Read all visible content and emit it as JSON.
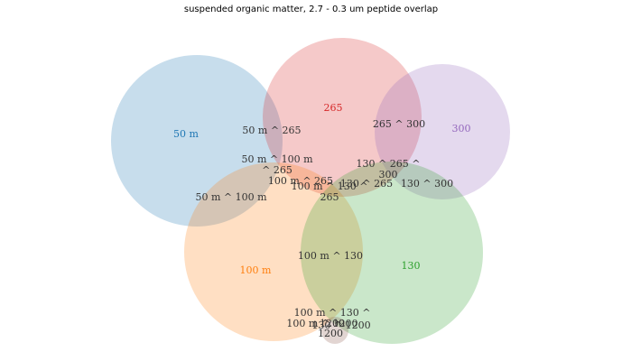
{
  "title": "suspended organic matter, 2.7 - 0.3 um peptide overlap",
  "sets": [
    {
      "key": "50m",
      "label": "50 m",
      "color": "#1f77b4"
    },
    {
      "key": "265",
      "label": "265",
      "color": "#d62728"
    },
    {
      "key": "300",
      "label": "300",
      "color": "#9467bd"
    },
    {
      "key": "100m",
      "label": "100 m",
      "color": "#ff7f0e"
    },
    {
      "key": "130",
      "label": "130",
      "color": "#2ca02c"
    },
    {
      "key": "1200",
      "label": "1200",
      "color": "#8c564b"
    }
  ],
  "overlap_labels": [
    "50 m ^ 265",
    "265 ^ 300",
    "50 m ^ 100 m\n^ 265",
    "130 ^ 265 ^\n300",
    "100 m ^ 265",
    "100 m ^ 130 ^\n265",
    "50 m ^ 100 m",
    "130 ^ 265",
    "130 ^ 300",
    "100 m ^ 130",
    "100 m ^ 130 ^\n1200",
    "100 m ^ 1200",
    "130 ^ 1200",
    "1200"
  ]
}
